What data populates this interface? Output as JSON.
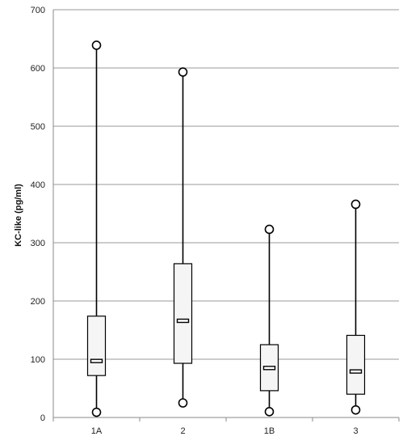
{
  "chart_data": {
    "type": "boxplot",
    "title": "",
    "xlabel": "",
    "ylabel": "KC-like (pg/ml)",
    "ylim": [
      0,
      700
    ],
    "yticks": [
      0,
      100,
      200,
      300,
      400,
      500,
      600,
      700
    ],
    "grid": "horizontal",
    "categories": [
      "1A",
      "2",
      "1B",
      "3"
    ],
    "boxes": [
      {
        "category": "1A",
        "min": 9,
        "q1": 72,
        "median": 97,
        "q3": 174,
        "max": 639
      },
      {
        "category": "2",
        "min": 25,
        "q1": 93,
        "median": 166,
        "q3": 264,
        "max": 593
      },
      {
        "category": "1B",
        "min": 10,
        "q1": 46,
        "median": 85,
        "q3": 125,
        "max": 323
      },
      {
        "category": "3",
        "min": 13,
        "q1": 40,
        "median": 79,
        "q3": 141,
        "max": 366
      }
    ],
    "colors": {
      "box_fill": "#f5f5f5",
      "stroke": "#000000",
      "grid": "#9a9a9a"
    }
  }
}
